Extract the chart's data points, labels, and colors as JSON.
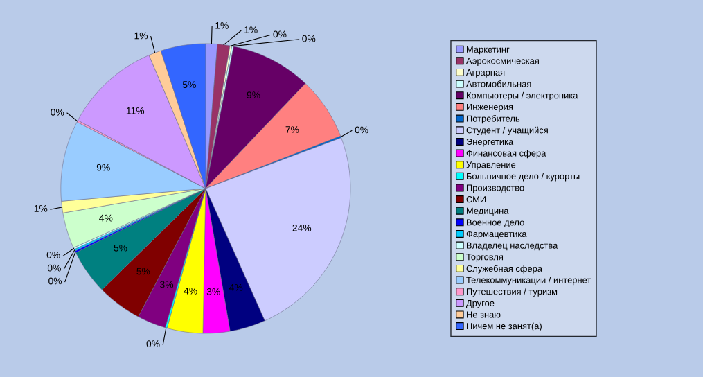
{
  "chart_data": {
    "type": "pie",
    "legend": "right",
    "categories": [
      "Маркетинг",
      "Аэрокосмическая",
      "Аграрная",
      "Автомобильная",
      "Компьютеры / электроника",
      "Инженерия",
      "Потребитель",
      "Студент / учащийся",
      "Энергетика",
      "Финансовая сфера",
      "Управление",
      "Больничное дело / курорты",
      "Производство",
      "СМИ",
      "Медицина",
      "Военное дело",
      "Фармацевтика",
      "Владелец наследства",
      "Торговля",
      "Служебная сфера",
      "Телекоммуникации / интернет",
      "Путешествия / туризм",
      "Другое",
      "Не знаю",
      "Ничем не занят(а)"
    ],
    "values": [
      1.3,
      1.4,
      0.2,
      0.2,
      9.0,
      7.0,
      0.2,
      24.0,
      4.0,
      3.0,
      4.0,
      0.2,
      3.2,
      5.0,
      5.0,
      0.2,
      0.2,
      0.2,
      4.0,
      1.3,
      9.0,
      0.2,
      10.8,
      1.4,
      5.0
    ],
    "value_labels": [
      "1%",
      "1%",
      "0%",
      "0%",
      "9%",
      "7%",
      "0%",
      "24%",
      "4%",
      "3%",
      "4%",
      "0%",
      "3%",
      "5%",
      "5%",
      "0%",
      "0%",
      "0%",
      "4%",
      "1%",
      "9%",
      "0%",
      "11%",
      "1%",
      "5%"
    ],
    "colors": [
      "#9999ff",
      "#993366",
      "#ffffcc",
      "#ccffff",
      "#660066",
      "#ff8080",
      "#0066cc",
      "#ccccff",
      "#000080",
      "#ff00ff",
      "#ffff00",
      "#00ffff",
      "#800080",
      "#800000",
      "#008080",
      "#0000ff",
      "#00ccff",
      "#ccffff",
      "#ccffcc",
      "#ffff99",
      "#99ccff",
      "#ff99cc",
      "#cc99ff",
      "#ffcc99",
      "#3366ff"
    ]
  }
}
